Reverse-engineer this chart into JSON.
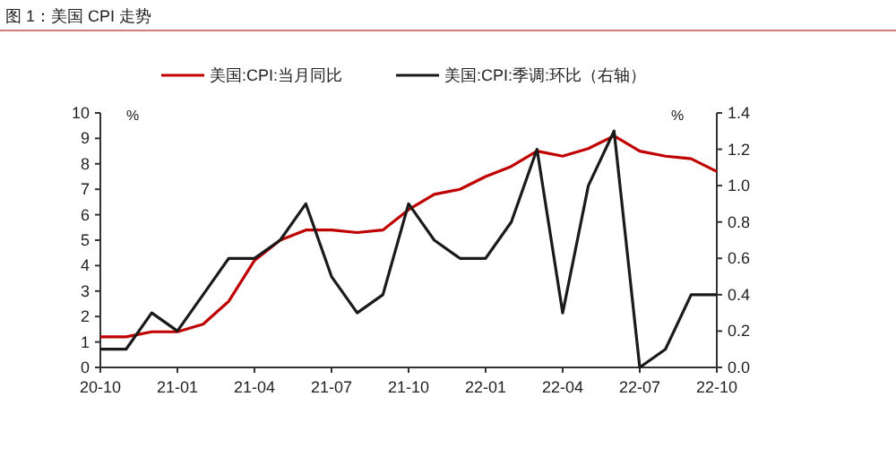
{
  "chart_data": {
    "type": "line",
    "title": "图 1：美国 CPI 走势",
    "ylabel": "%",
    "y2label": "%",
    "legend": "top",
    "grid": false,
    "categories": [
      "20-10",
      null,
      null,
      "21-01",
      null,
      null,
      "21-04",
      null,
      null,
      "21-07",
      null,
      null,
      "21-10",
      null,
      null,
      "22-01",
      null,
      null,
      "22-04",
      null,
      null,
      "22-07",
      null,
      null,
      "22-10"
    ],
    "ylim": [
      0,
      10
    ],
    "yticks": [
      0,
      1,
      2,
      3,
      4,
      5,
      6,
      7,
      8,
      9,
      10
    ],
    "y2lim": [
      0,
      1.4
    ],
    "y2ticks": [
      {
        "value": 0,
        "label": "0.0"
      },
      {
        "value": 0.2,
        "label": "0.2"
      },
      {
        "value": 0.4,
        "label": "0.4"
      },
      {
        "value": 0.6,
        "label": "0.6"
      },
      {
        "value": 0.8,
        "label": "0.8"
      },
      {
        "value": 1,
        "label": "1.0"
      },
      {
        "value": 1.2,
        "label": "1.2"
      },
      {
        "value": 1.4,
        "label": "1.4"
      }
    ],
    "series": [
      {
        "name": "美国:CPI:当月同比",
        "color": "#c00000",
        "values": [
          1.2,
          1.2,
          1.4,
          1.4,
          1.7,
          2.6,
          4.2,
          5.0,
          5.4,
          5.4,
          5.3,
          5.4,
          6.2,
          6.8,
          7.0,
          7.5,
          7.9,
          8.5,
          8.3,
          8.6,
          9.1,
          8.5,
          8.3,
          8.2,
          7.7
        ]
      },
      {
        "name": "美国:CPI:季调:环比（右轴）",
        "color": "#1a1a1a",
        "axis": "y2",
        "values": [
          0.1,
          0.1,
          0.3,
          0.2,
          0.4,
          0.6,
          0.6,
          0.7,
          0.9,
          0.5,
          0.3,
          0.4,
          0.9,
          0.7,
          0.6,
          0.6,
          0.8,
          1.2,
          0.3,
          1.0,
          1.3,
          0.0,
          0.1,
          0.4,
          0.4
        ]
      }
    ]
  }
}
